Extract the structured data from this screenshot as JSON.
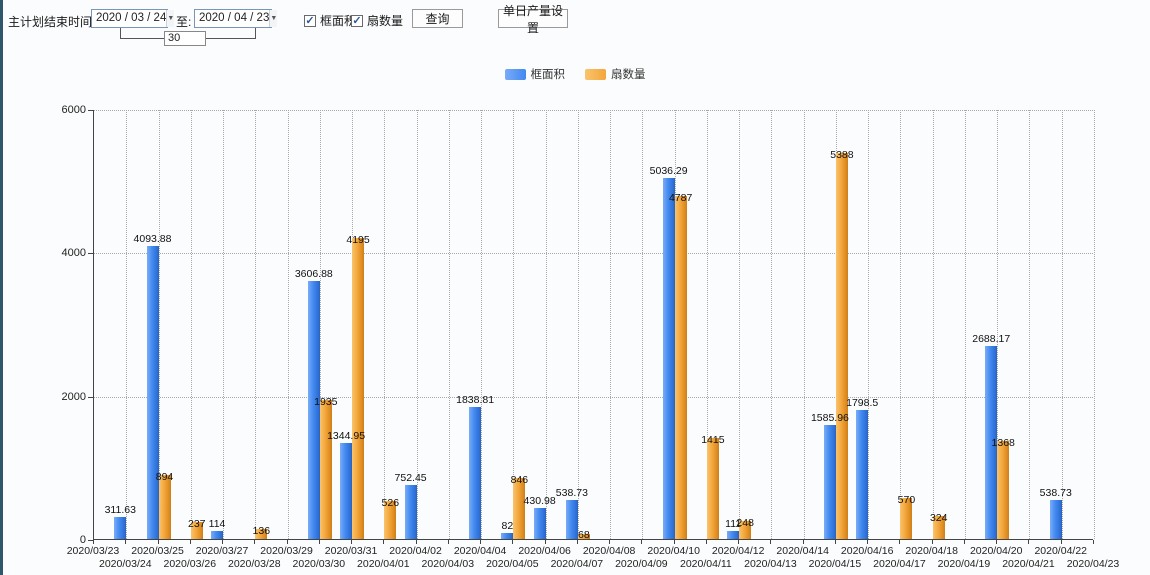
{
  "toolbar": {
    "label": "主计划结束时间:",
    "date_from": "2020 / 03 / 24",
    "to_label": "至:",
    "date_to": "2020 / 04 / 23",
    "interval_days": "30",
    "checkboxes": [
      {
        "label": "框面积",
        "checked": true
      },
      {
        "label": "扇数量",
        "checked": true
      }
    ],
    "query_button": "查询",
    "daily_output_button": "单日产量设置"
  },
  "legend": [
    {
      "label": "框面积",
      "color_light": "#7aabf7",
      "color": "#4189f0"
    },
    {
      "label": "扇数量",
      "color_light": "#f9c46d",
      "color": "#f3a63b"
    }
  ],
  "chart_data": {
    "type": "bar",
    "title": "",
    "xlabel": "",
    "ylabel": "",
    "ylim": [
      0,
      6000
    ],
    "yticks": [
      0,
      2000,
      4000,
      6000
    ],
    "grid": true,
    "legend_position": "top",
    "categories": [
      "2020/03/23",
      "2020/03/24",
      "2020/03/25",
      "2020/03/26",
      "2020/03/27",
      "2020/03/28",
      "2020/03/29",
      "2020/03/30",
      "2020/03/31",
      "2020/04/01",
      "2020/04/02",
      "2020/04/03",
      "2020/04/04",
      "2020/04/05",
      "2020/04/06",
      "2020/04/07",
      "2020/04/08",
      "2020/04/09",
      "2020/04/10",
      "2020/04/11",
      "2020/04/12",
      "2020/04/13",
      "2020/04/14",
      "2020/04/15",
      "2020/04/16",
      "2020/04/17",
      "2020/04/18",
      "2020/04/19",
      "2020/04/20",
      "2020/04/21",
      "2020/04/22",
      "2020/04/23"
    ],
    "series": [
      {
        "name": "框面积",
        "color": "#4189f0",
        "values": [
          null,
          311.63,
          4093.88,
          null,
          114,
          null,
          null,
          3606.88,
          1344.95,
          null,
          752.45,
          null,
          1838.81,
          82,
          430.98,
          538.73,
          null,
          null,
          5036.29,
          null,
          111,
          null,
          null,
          1585.96,
          1798.5,
          null,
          null,
          null,
          2688.17,
          null,
          538.73,
          null
        ]
      },
      {
        "name": "扇数量",
        "color": "#f3a63b",
        "values": [
          null,
          null,
          894,
          237,
          null,
          136,
          null,
          1935,
          4195,
          526,
          null,
          null,
          null,
          846,
          null,
          68,
          null,
          null,
          4787,
          1415,
          248,
          null,
          null,
          5388,
          null,
          570,
          324,
          null,
          1368,
          null,
          null,
          null
        ]
      }
    ]
  }
}
